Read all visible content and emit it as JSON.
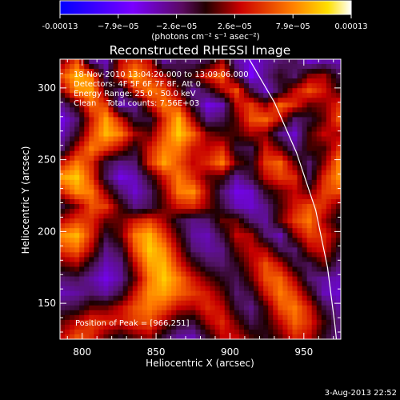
{
  "chart_data": {
    "type": "heatmap",
    "title": "Reconstructed RHESSI Image",
    "xlabel": "Heliocentric X (arcsec)",
    "ylabel": "Heliocentric Y (arcsec)",
    "xlim": [
      785,
      975
    ],
    "ylim": [
      125,
      320
    ],
    "x_ticks": [
      800,
      850,
      900,
      950
    ],
    "y_ticks": [
      150,
      200,
      250,
      300
    ],
    "colorbar": {
      "min": -0.00013,
      "max": 0.00013,
      "tick_labels": [
        "-0.00013",
        "−7.9e−05",
        "−2.6e−05",
        "2.6e−05",
        "7.9e−05",
        "0.00013"
      ],
      "unit_label": "(photons cm⁻² s⁻¹ asec⁻²)"
    },
    "annotations": [
      "18-Nov-2010 13:04:20.000 to 13:09:06.000",
      "Detectors: 4F 5F 6F 7F 8F, Att 0",
      "Energy Range: 25.0 - 50.0 keV",
      "Clean    Total counts: 7.56E+03"
    ],
    "peak_label": "Position of Peak = [966,251]",
    "peak": [
      966,
      251
    ],
    "limb_curve": [
      [
        913,
        320
      ],
      [
        930,
        290
      ],
      [
        945,
        255
      ],
      [
        958,
        215
      ],
      [
        966,
        175
      ],
      [
        971,
        135
      ],
      [
        972,
        125
      ]
    ],
    "image": {
      "x0": 785,
      "x1": 975,
      "y0": 125,
      "y1": 320,
      "cols": 20,
      "rows": 20,
      "values": [
        [
          0.15,
          0.45,
          -0.25,
          -0.35,
          0.25,
          0.4,
          0.25,
          -0.3,
          -0.15,
          -0.2,
          -0.1,
          0.2,
          -0.3,
          -0.45,
          -0.3,
          -0.2,
          -0.15,
          -0.4,
          -0.3,
          -0.35
        ],
        [
          0.45,
          0.7,
          0.55,
          -0.2,
          0.35,
          0.65,
          0.4,
          0.2,
          -0.1,
          0.05,
          0.35,
          0.5,
          -0.1,
          -0.5,
          -0.25,
          -0.05,
          -0.2,
          0.15,
          0.2,
          -0.1
        ],
        [
          0.2,
          0.6,
          0.65,
          0.05,
          -0.2,
          0.35,
          0.55,
          0.45,
          0.1,
          -0.3,
          -0.1,
          0.2,
          0.45,
          -0.1,
          -0.4,
          -0.1,
          0.25,
          0.45,
          0.3,
          0.05
        ],
        [
          -0.25,
          0.05,
          0.5,
          0.4,
          -0.35,
          -0.3,
          0.25,
          0.55,
          0.4,
          -0.1,
          -0.45,
          -0.35,
          0.25,
          0.4,
          0.15,
          0.5,
          0.35,
          0.1,
          0.15,
          0.35
        ],
        [
          -0.45,
          -0.2,
          0.3,
          0.65,
          0.3,
          -0.1,
          -0.1,
          0.35,
          0.7,
          0.2,
          -0.25,
          -0.15,
          0.1,
          0.45,
          0.5,
          0.25,
          -0.2,
          -0.1,
          0.1,
          0.45
        ],
        [
          -0.35,
          -0.05,
          0.4,
          0.7,
          0.55,
          0.2,
          0.1,
          0.45,
          0.75,
          0.5,
          0.15,
          0.05,
          0.05,
          0.2,
          0.15,
          -0.25,
          -0.4,
          0.05,
          0.25,
          0.2
        ],
        [
          -0.2,
          0.25,
          0.55,
          0.4,
          0.2,
          -0.05,
          0.3,
          0.55,
          0.55,
          0.3,
          0.25,
          0.35,
          -0.1,
          -0.15,
          0.3,
          0.1,
          -0.25,
          0.05,
          0.05,
          0.35
        ],
        [
          0.3,
          0.55,
          0.35,
          -0.1,
          -0.25,
          -0.2,
          0.35,
          0.65,
          0.45,
          0.25,
          0.35,
          0.55,
          0.1,
          -0.05,
          0.4,
          0.5,
          0.1,
          -0.2,
          0.15,
          0.55
        ],
        [
          0.65,
          0.75,
          0.4,
          -0.15,
          -0.45,
          -0.35,
          -0.05,
          0.3,
          0.55,
          0.35,
          0.1,
          0.05,
          -0.3,
          -0.1,
          0.25,
          0.4,
          0.35,
          -0.15,
          0.35,
          0.6
        ],
        [
          0.35,
          0.6,
          0.55,
          0.15,
          -0.2,
          -0.4,
          -0.2,
          0.15,
          0.55,
          0.6,
          0.2,
          -0.2,
          -0.45,
          -0.4,
          -0.05,
          0.1,
          0.25,
          0.1,
          0.4,
          0.45
        ],
        [
          -0.1,
          0.15,
          0.45,
          0.4,
          0.05,
          -0.25,
          -0.15,
          0.1,
          0.3,
          0.35,
          0.15,
          -0.1,
          -0.35,
          -0.4,
          -0.25,
          0.05,
          0.3,
          0.45,
          0.35,
          0.1
        ],
        [
          0.25,
          0.4,
          0.35,
          0.1,
          0.1,
          0.3,
          0.4,
          0.2,
          -0.1,
          -0.25,
          -0.2,
          0.1,
          0.1,
          -0.2,
          -0.3,
          0.1,
          0.4,
          0.55,
          0.2,
          -0.05
        ],
        [
          0.6,
          0.7,
          0.35,
          -0.1,
          0.1,
          0.55,
          0.7,
          0.4,
          0.05,
          -0.3,
          -0.35,
          -0.1,
          0.25,
          0.2,
          -0.2,
          -0.35,
          0.15,
          0.4,
          0.35,
          0.1
        ],
        [
          0.4,
          0.5,
          0.2,
          -0.25,
          -0.1,
          0.45,
          0.75,
          0.6,
          0.2,
          -0.2,
          -0.3,
          -0.25,
          0.1,
          0.25,
          0.2,
          -0.15,
          -0.2,
          0.2,
          0.3,
          -0.05
        ],
        [
          0.1,
          0.2,
          -0.1,
          -0.35,
          -0.25,
          0.25,
          0.65,
          0.7,
          0.35,
          0.05,
          -0.15,
          -0.2,
          -0.05,
          0.2,
          0.45,
          0.25,
          -0.1,
          -0.15,
          0.1,
          -0.2
        ],
        [
          -0.2,
          -0.15,
          -0.3,
          -0.45,
          -0.3,
          0.1,
          0.55,
          0.75,
          0.55,
          0.3,
          0.1,
          -0.05,
          -0.15,
          0.1,
          0.45,
          0.5,
          0.2,
          -0.2,
          -0.3,
          -0.35
        ],
        [
          -0.35,
          -0.3,
          -0.2,
          -0.3,
          -0.1,
          0.3,
          0.6,
          0.65,
          0.5,
          0.4,
          0.3,
          0.1,
          -0.2,
          -0.1,
          0.3,
          0.55,
          0.4,
          0.05,
          -0.35,
          -0.4
        ],
        [
          -0.15,
          -0.1,
          0.1,
          0.1,
          0.25,
          0.45,
          0.55,
          0.45,
          0.25,
          0.2,
          0.35,
          0.25,
          -0.1,
          -0.25,
          0.05,
          0.45,
          0.55,
          0.3,
          -0.1,
          -0.3
        ],
        [
          0.1,
          0.25,
          0.4,
          0.35,
          0.3,
          0.4,
          0.45,
          0.2,
          -0.05,
          -0.1,
          0.2,
          0.35,
          0.1,
          -0.15,
          0.0,
          0.25,
          0.5,
          0.35,
          0.05,
          -0.2
        ],
        [
          0.25,
          0.45,
          0.35,
          0.1,
          -0.05,
          0.1,
          0.2,
          -0.1,
          -0.3,
          -0.35,
          -0.05,
          0.25,
          0.25,
          0.05,
          -0.05,
          0.1,
          0.35,
          0.25,
          -0.05,
          -0.25
        ]
      ]
    }
  },
  "footer": {
    "timestamp": "3-Aug-2013 22:52"
  },
  "colors": {
    "background": "#000000",
    "text": "#ffffff",
    "axes": "#ffffff"
  }
}
